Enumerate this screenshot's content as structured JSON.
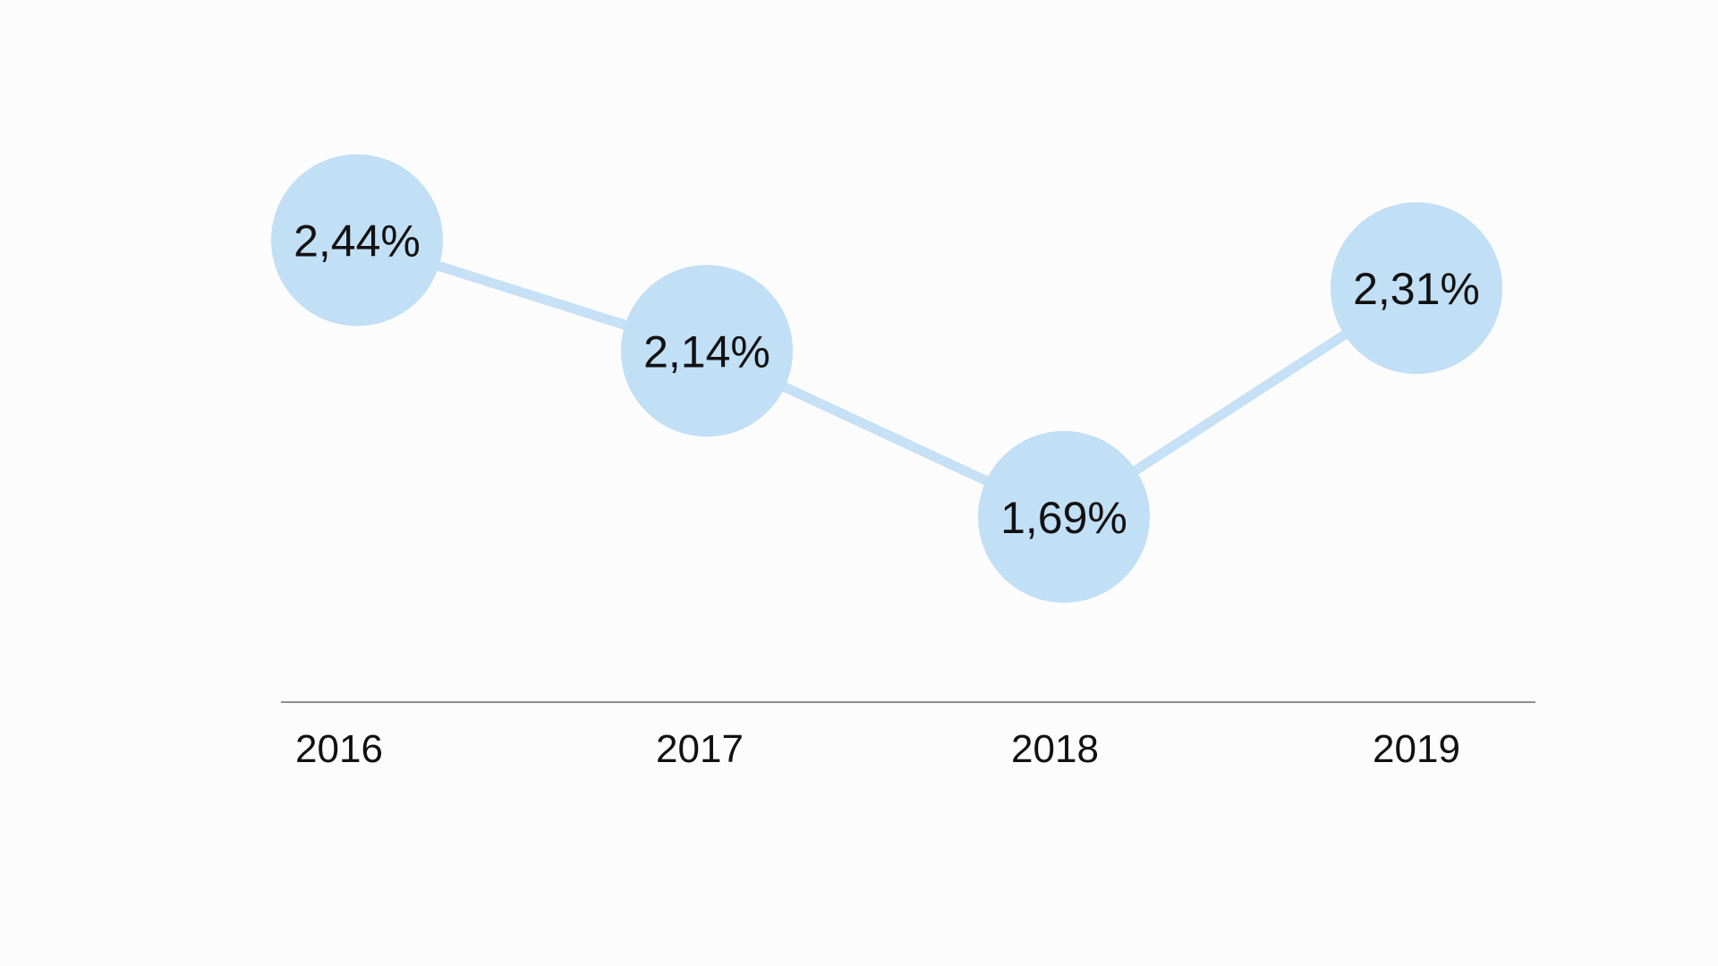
{
  "chart_data": {
    "type": "line",
    "categories": [
      "2016",
      "2017",
      "2018",
      "2019"
    ],
    "values": [
      2.44,
      2.14,
      1.69,
      2.31
    ],
    "data_labels": [
      "2,44%",
      "2,14%",
      "1,69%",
      "2,31%"
    ],
    "title": "",
    "xlabel": "",
    "ylabel": "",
    "ylim": [
      1.2,
      2.8
    ],
    "grid": false,
    "legend": "none",
    "colors": {
      "marker": "#c1dff5",
      "line": "#c6e1f6",
      "axis": "#8f8f8f",
      "text": "#111111",
      "background": "#fdfcfd"
    }
  }
}
